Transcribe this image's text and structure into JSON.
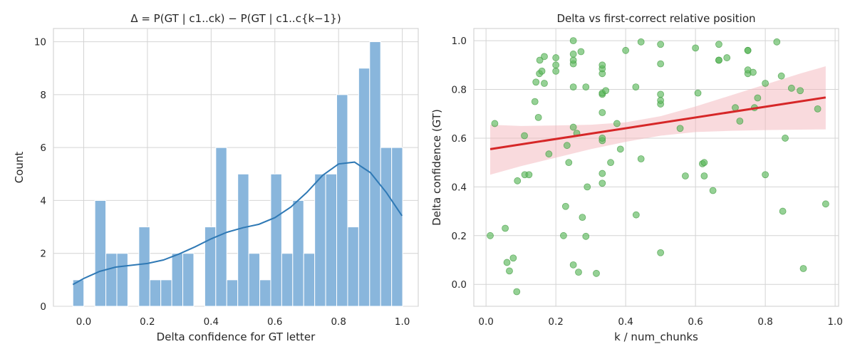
{
  "chart_data": [
    {
      "type": "bar",
      "title": "Δ = P(GT | c1..ck) − P(GT | c1..c{k−1})",
      "xlabel": "Delta confidence for GT letter",
      "ylabel": "Count",
      "xlim": [
        -0.095,
        1.05
      ],
      "ylim": [
        0,
        10.5
      ],
      "xticks": [
        0.0,
        0.2,
        0.4,
        0.6,
        0.8,
        1.0
      ],
      "xtick_labels": [
        "0.0",
        "0.2",
        "0.4",
        "0.6",
        "0.8",
        "1.0"
      ],
      "yticks": [
        0,
        2,
        4,
        6,
        8,
        10
      ],
      "ytick_labels": [
        "0",
        "2",
        "4",
        "6",
        "8",
        "10"
      ],
      "grid": true,
      "bin_start": -0.034,
      "bin_width": 0.0345,
      "counts": [
        1,
        0,
        4,
        2,
        2,
        0,
        3,
        1,
        1,
        2,
        2,
        0,
        3,
        6,
        1,
        5,
        2,
        1,
        5,
        2,
        4,
        2,
        5,
        5,
        8,
        3,
        9,
        10,
        6,
        6
      ],
      "bar_color": "#89b6dc",
      "kde": {
        "x": [
          -0.034,
          0.0,
          0.05,
          0.1,
          0.15,
          0.2,
          0.25,
          0.3,
          0.35,
          0.4,
          0.45,
          0.5,
          0.55,
          0.6,
          0.65,
          0.7,
          0.75,
          0.8,
          0.85,
          0.9,
          0.95,
          0.999
        ],
        "y": [
          0.82,
          1.05,
          1.32,
          1.48,
          1.55,
          1.62,
          1.75,
          1.98,
          2.25,
          2.55,
          2.8,
          2.97,
          3.1,
          3.35,
          3.75,
          4.3,
          4.95,
          5.38,
          5.45,
          5.05,
          4.3,
          3.42
        ],
        "color": "#2f79b5"
      }
    },
    {
      "type": "scatter",
      "title": "Delta vs first-correct relative position",
      "xlabel": "k / num_chunks",
      "ylabel": "Delta confidence (GT)",
      "xlim": [
        -0.035,
        1.01
      ],
      "ylim": [
        -0.09,
        1.05
      ],
      "xticks": [
        0.0,
        0.2,
        0.4,
        0.6,
        0.8,
        1.0
      ],
      "xtick_labels": [
        "0.0",
        "0.2",
        "0.4",
        "0.6",
        "0.8",
        "1.0"
      ],
      "yticks": [
        0.0,
        0.2,
        0.4,
        0.6,
        0.8,
        1.0
      ],
      "ytick_labels": [
        "0.0",
        "0.2",
        "0.4",
        "0.6",
        "0.8",
        "1.0"
      ],
      "grid": true,
      "point_color": "#5cb85c",
      "points": [
        [
          0.012,
          0.2
        ],
        [
          0.025,
          0.66
        ],
        [
          0.055,
          0.23
        ],
        [
          0.06,
          0.09
        ],
        [
          0.067,
          0.055
        ],
        [
          0.078,
          0.108
        ],
        [
          0.09,
          0.425
        ],
        [
          0.088,
          -0.03
        ],
        [
          0.11,
          0.61
        ],
        [
          0.111,
          0.45
        ],
        [
          0.123,
          0.45
        ],
        [
          0.14,
          0.75
        ],
        [
          0.143,
          0.83
        ],
        [
          0.15,
          0.685
        ],
        [
          0.153,
          0.865
        ],
        [
          0.16,
          0.875
        ],
        [
          0.154,
          0.92
        ],
        [
          0.167,
          0.935
        ],
        [
          0.167,
          0.825
        ],
        [
          0.18,
          0.535
        ],
        [
          0.2,
          0.875
        ],
        [
          0.2,
          0.9
        ],
        [
          0.2,
          0.93
        ],
        [
          0.222,
          0.2
        ],
        [
          0.228,
          0.32
        ],
        [
          0.232,
          0.57
        ],
        [
          0.237,
          0.5
        ],
        [
          0.25,
          0.08
        ],
        [
          0.25,
          0.645
        ],
        [
          0.25,
          0.81
        ],
        [
          0.25,
          0.905
        ],
        [
          0.25,
          0.92
        ],
        [
          0.25,
          0.945
        ],
        [
          0.25,
          1.0
        ],
        [
          0.26,
          0.62
        ],
        [
          0.265,
          0.05
        ],
        [
          0.272,
          0.955
        ],
        [
          0.276,
          0.275
        ],
        [
          0.286,
          0.197
        ],
        [
          0.286,
          0.81
        ],
        [
          0.29,
          0.4
        ],
        [
          0.316,
          0.045
        ],
        [
          0.333,
          0.415
        ],
        [
          0.333,
          0.455
        ],
        [
          0.333,
          0.59
        ],
        [
          0.333,
          0.6
        ],
        [
          0.333,
          0.705
        ],
        [
          0.333,
          0.78
        ],
        [
          0.333,
          0.785
        ],
        [
          0.333,
          0.865
        ],
        [
          0.333,
          0.885
        ],
        [
          0.333,
          0.9
        ],
        [
          0.343,
          0.795
        ],
        [
          0.357,
          0.5
        ],
        [
          0.375,
          0.66
        ],
        [
          0.385,
          0.555
        ],
        [
          0.4,
          0.96
        ],
        [
          0.429,
          0.81
        ],
        [
          0.43,
          0.285
        ],
        [
          0.444,
          0.515
        ],
        [
          0.444,
          0.995
        ],
        [
          0.5,
          0.13
        ],
        [
          0.5,
          0.74
        ],
        [
          0.5,
          0.755
        ],
        [
          0.5,
          0.78
        ],
        [
          0.5,
          0.905
        ],
        [
          0.5,
          0.985
        ],
        [
          0.556,
          0.64
        ],
        [
          0.571,
          0.445
        ],
        [
          0.6,
          0.97
        ],
        [
          0.607,
          0.785
        ],
        [
          0.62,
          0.495
        ],
        [
          0.625,
          0.5
        ],
        [
          0.625,
          0.445
        ],
        [
          0.65,
          0.385
        ],
        [
          0.667,
          0.92
        ],
        [
          0.667,
          0.92
        ],
        [
          0.667,
          0.985
        ],
        [
          0.69,
          0.93
        ],
        [
          0.714,
          0.725
        ],
        [
          0.727,
          0.67
        ],
        [
          0.75,
          0.865
        ],
        [
          0.75,
          0.88
        ],
        [
          0.75,
          0.96
        ],
        [
          0.75,
          0.96
        ],
        [
          0.765,
          0.87
        ],
        [
          0.769,
          0.725
        ],
        [
          0.778,
          0.765
        ],
        [
          0.8,
          0.45
        ],
        [
          0.8,
          0.825
        ],
        [
          0.833,
          0.995
        ],
        [
          0.846,
          0.855
        ],
        [
          0.85,
          0.3
        ],
        [
          0.857,
          0.6
        ],
        [
          0.875,
          0.805
        ],
        [
          0.9,
          0.795
        ],
        [
          0.909,
          0.065
        ],
        [
          0.95,
          0.72
        ],
        [
          0.973,
          0.33
        ]
      ],
      "regression": {
        "x": [
          0.012,
          0.973
        ],
        "y": [
          0.555,
          0.767
        ],
        "color": "#d62728"
      },
      "ci_band": {
        "x": [
          0.012,
          0.1,
          0.2,
          0.3,
          0.4,
          0.5,
          0.6,
          0.7,
          0.8,
          0.9,
          0.973
        ],
        "upper": [
          0.655,
          0.65,
          0.652,
          0.655,
          0.665,
          0.69,
          0.73,
          0.775,
          0.82,
          0.865,
          0.895
        ],
        "lower": [
          0.45,
          0.485,
          0.52,
          0.555,
          0.585,
          0.61,
          0.625,
          0.63,
          0.633,
          0.635,
          0.636
        ],
        "color": "#f4b6bc"
      }
    }
  ]
}
